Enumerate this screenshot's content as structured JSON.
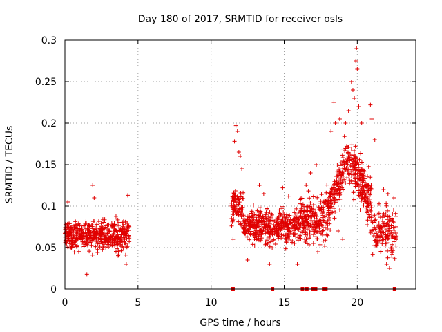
{
  "chart_data": {
    "type": "scatter",
    "title": "Day 180 of 2017, SRMTID for receiver osls",
    "xlabel": "GPS time / hours",
    "ylabel": "SRMTID / TECUs",
    "xlim": [
      0,
      24
    ],
    "ylim": [
      0,
      0.3
    ],
    "xticks": [
      0,
      5,
      10,
      15,
      20
    ],
    "yticks": [
      0,
      0.05,
      0.1,
      0.15,
      0.2,
      0.25,
      0.3
    ],
    "xtick_labels": [
      "0",
      "5",
      "10",
      "15",
      "20"
    ],
    "ytick_labels": [
      "0",
      "0.05",
      "0.1",
      "0.15",
      "0.2",
      "0.25",
      "0.3"
    ],
    "grid": true,
    "marker": "+",
    "color": "#e00000",
    "series": [
      {
        "name": "SRMTID",
        "segments": [
          {
            "x_start": 0.0,
            "x_end": 4.4,
            "y_center": 0.065,
            "y_spread": 0.03
          },
          {
            "x_start": 11.4,
            "x_end": 16.1,
            "y_center": 0.075,
            "y_spread": 0.035
          },
          {
            "x_start": 16.1,
            "x_end": 22.7,
            "y_center": 0.11,
            "y_spread": 0.05
          }
        ],
        "points": [
          [
            1.5,
            0.018
          ],
          [
            1.9,
            0.125
          ],
          [
            2.0,
            0.11
          ],
          [
            0.2,
            0.105
          ],
          [
            4.3,
            0.113
          ],
          [
            4.2,
            0.03
          ],
          [
            11.7,
            0.197
          ],
          [
            11.8,
            0.19
          ],
          [
            11.6,
            0.178
          ],
          [
            11.9,
            0.165
          ],
          [
            12.0,
            0.16
          ],
          [
            13.3,
            0.125
          ],
          [
            14.9,
            0.122
          ],
          [
            15.3,
            0.112
          ],
          [
            13.6,
            0.115
          ],
          [
            12.1,
            0.145
          ],
          [
            11.5,
            0.06
          ],
          [
            12.5,
            0.035
          ],
          [
            14.0,
            0.03
          ],
          [
            15.9,
            0.03
          ],
          [
            16.5,
            0.125
          ],
          [
            16.8,
            0.14
          ],
          [
            17.2,
            0.15
          ],
          [
            17.3,
            0.045
          ],
          [
            18.2,
            0.19
          ],
          [
            18.4,
            0.225
          ],
          [
            18.5,
            0.2
          ],
          [
            18.8,
            0.205
          ],
          [
            19.2,
            0.2
          ],
          [
            19.4,
            0.215
          ],
          [
            19.6,
            0.25
          ],
          [
            19.7,
            0.24
          ],
          [
            19.8,
            0.23
          ],
          [
            19.9,
            0.275
          ],
          [
            19.95,
            0.29
          ],
          [
            20.0,
            0.265
          ],
          [
            20.1,
            0.22
          ],
          [
            20.3,
            0.2
          ],
          [
            20.9,
            0.222
          ],
          [
            21.0,
            0.205
          ],
          [
            21.2,
            0.18
          ],
          [
            21.8,
            0.12
          ],
          [
            22.1,
            0.115
          ],
          [
            22.5,
            0.11
          ],
          [
            22.0,
            0.03
          ],
          [
            22.2,
            0.025
          ],
          [
            21.6,
            0.045
          ],
          [
            19.0,
            0.06
          ],
          [
            18.7,
            0.07
          ],
          [
            17.6,
            0.07
          ],
          [
            16.4,
            0.06
          ],
          [
            17.0,
            0.055
          ]
        ]
      }
    ],
    "zero_markers": [
      11.5,
      14.2,
      16.25,
      16.55,
      16.95,
      17.15,
      17.7,
      17.85,
      22.55
    ]
  }
}
